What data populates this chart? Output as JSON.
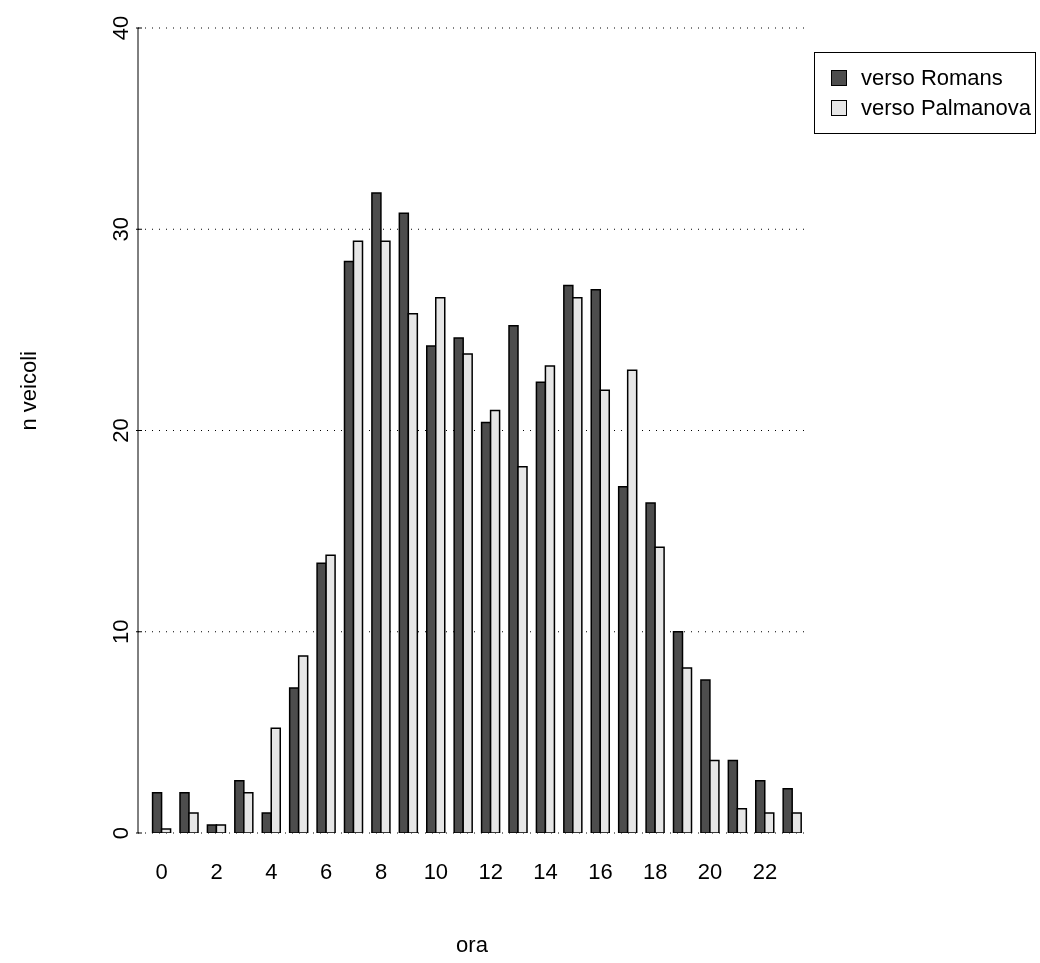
{
  "chart_data": {
    "type": "bar",
    "xlabel": "ora",
    "ylabel": "n veicoli",
    "categories": [
      "0",
      null,
      "2",
      null,
      "4",
      null,
      "6",
      null,
      "8",
      null,
      "10",
      null,
      "12",
      null,
      "14",
      null,
      "16",
      null,
      "18",
      null,
      "20",
      null,
      "22",
      null
    ],
    "series": [
      {
        "name": "verso Romans",
        "color": "#4d4d4d",
        "values": [
          2.0,
          2.0,
          0.4,
          2.6,
          1.0,
          7.2,
          13.4,
          28.4,
          31.8,
          30.8,
          24.2,
          24.6,
          20.4,
          25.2,
          22.4,
          27.2,
          27.0,
          17.2,
          16.4,
          10.0,
          7.6,
          3.6,
          2.6,
          2.2
        ]
      },
      {
        "name": "verso Palmanova",
        "color": "#e6e6e6",
        "values": [
          0.2,
          1.0,
          0.4,
          2.0,
          5.2,
          8.8,
          13.8,
          29.4,
          29.4,
          25.8,
          26.6,
          23.8,
          21.0,
          18.2,
          23.2,
          26.6,
          22.0,
          23.0,
          14.2,
          8.2,
          3.6,
          1.2,
          1.0,
          1.0
        ]
      }
    ],
    "ylim": [
      0,
      40
    ],
    "yticks": [
      0,
      10,
      20,
      30,
      40
    ],
    "grid": "y",
    "legend": "top right"
  }
}
